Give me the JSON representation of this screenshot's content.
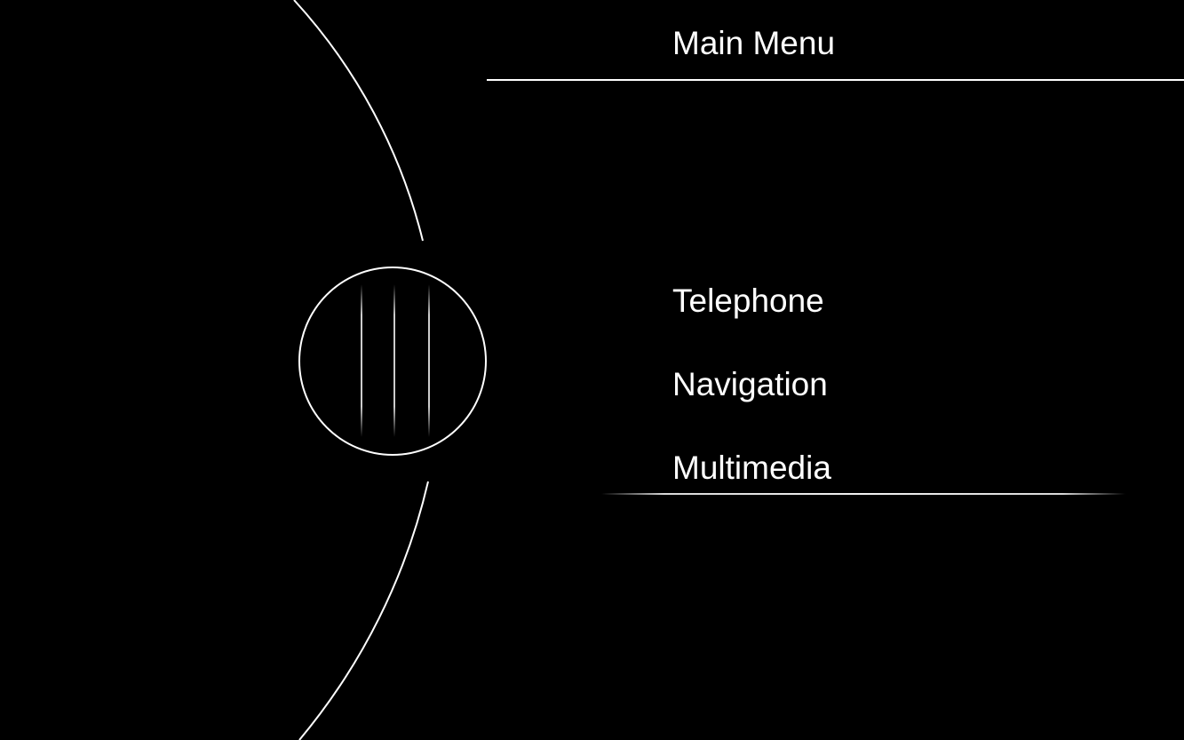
{
  "header": {
    "title": "Main Menu"
  },
  "menu": {
    "items": [
      {
        "label": "Telephone"
      },
      {
        "label": "Navigation"
      },
      {
        "label": "Multimedia"
      }
    ],
    "selected": "Multimedia"
  },
  "controller": {
    "icon": "rotary-controller-icon"
  },
  "colors": {
    "background": "#000000",
    "foreground": "#ffffff"
  }
}
